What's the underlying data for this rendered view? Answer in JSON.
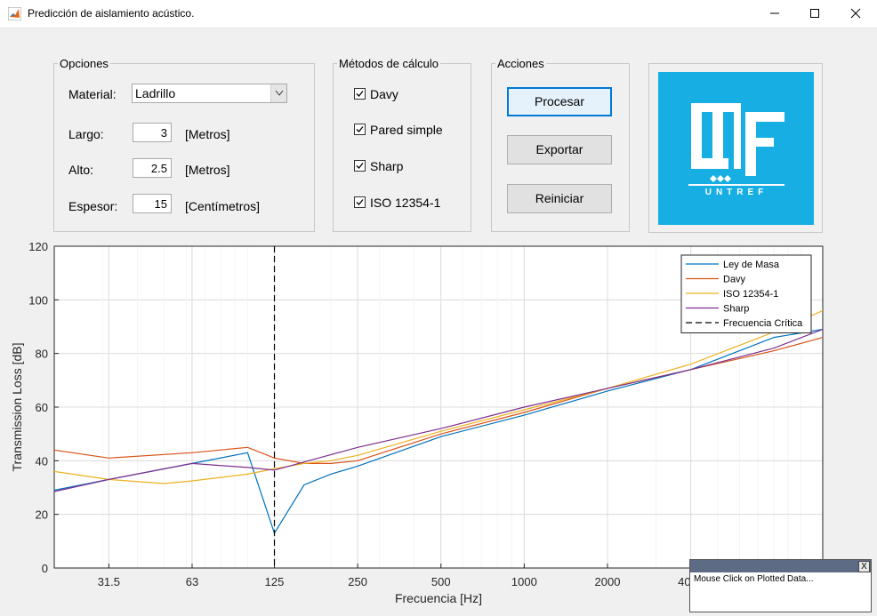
{
  "window": {
    "title": "Predicción de aislamiento acústico.",
    "minimize": "—",
    "maximize": "☐",
    "close": "✕"
  },
  "options": {
    "legend": "Opciones",
    "material_label": "Material:",
    "material_value": "Ladrillo",
    "largo_label": "Largo:",
    "largo_value": "3",
    "largo_unit": "[Metros]",
    "alto_label": "Alto:",
    "alto_value": "2.5",
    "alto_unit": "[Metros]",
    "espesor_label": "Espesor:",
    "espesor_value": "15",
    "espesor_unit": "[Centímetros]"
  },
  "methods": {
    "legend": "Métodos de cálculo",
    "items": [
      {
        "label": "Davy",
        "checked": true
      },
      {
        "label": "Pared simple",
        "checked": true
      },
      {
        "label": "Sharp",
        "checked": true
      },
      {
        "label": "ISO 12354-1",
        "checked": true
      }
    ]
  },
  "actions": {
    "legend": "Acciones",
    "process": "Procesar",
    "export": "Exportar",
    "reset": "Reiniciar"
  },
  "logo": {
    "text": "UNTREF"
  },
  "popup": {
    "close": "X",
    "message": "Mouse Click on Plotted Data..."
  },
  "chart_data": {
    "type": "line",
    "xlabel": "Frecuencia [Hz]",
    "ylabel": "Transmission Loss [dB]",
    "xscale": "log",
    "xlim": [
      20,
      12000
    ],
    "ylim": [
      0,
      120
    ],
    "yticks": [
      0,
      20,
      40,
      60,
      80,
      100,
      120
    ],
    "xticks": [
      31.5,
      63,
      125,
      250,
      500,
      1000,
      2000,
      4000
    ],
    "xtick_labels": [
      "31.5",
      "63",
      "125",
      "250",
      "500",
      "1000",
      "2000",
      "4000"
    ],
    "grid": true,
    "legend_position": "top-right",
    "critical_frequency": 125,
    "series": [
      {
        "name": "Ley de Masa",
        "color": "#0072bd",
        "x": [
          20,
          31.5,
          63,
          100,
          125,
          160,
          200,
          250,
          500,
          1000,
          2000,
          4000,
          8000,
          12000
        ],
        "y": [
          29,
          33,
          39,
          43,
          13,
          31,
          35,
          38,
          49,
          57,
          66,
          74,
          86,
          89
        ]
      },
      {
        "name": "Davy",
        "color": "#d95319",
        "x": [
          20,
          31.5,
          63,
          100,
          125,
          160,
          200,
          250,
          500,
          1000,
          2000,
          4000,
          8000,
          12000
        ],
        "y": [
          44,
          41,
          43,
          45,
          41,
          39,
          39,
          40,
          50,
          58,
          67,
          74,
          81,
          86
        ]
      },
      {
        "name": "ISO 12354-1",
        "color": "#edb120",
        "x": [
          20,
          31.5,
          50,
          63,
          100,
          125,
          160,
          200,
          250,
          500,
          1000,
          2000,
          4000,
          8000,
          12000
        ],
        "y": [
          36,
          33,
          31.5,
          32.5,
          35,
          37,
          39,
          40,
          42,
          51,
          59,
          67,
          76,
          88,
          96
        ]
      },
      {
        "name": "Sharp",
        "color": "#7e2f8e",
        "x": [
          20,
          31.5,
          63,
          100,
          125,
          250,
          500,
          1000,
          2000,
          4000,
          8000,
          12000
        ],
        "y": [
          28.5,
          33,
          39,
          37.5,
          36.5,
          45,
          52,
          60,
          67,
          74,
          82,
          89
        ]
      }
    ],
    "legend_entries": [
      "Ley de Masa",
      "Davy",
      "ISO 12354-1",
      "Sharp",
      "Frecuencia Crítica"
    ]
  }
}
